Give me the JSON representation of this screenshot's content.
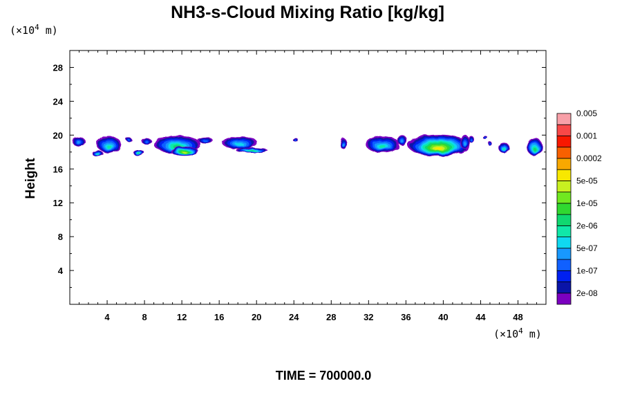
{
  "chart_data": {
    "type": "contour",
    "title": "NH3-s-Cloud Mixing Ratio [kg/kg]",
    "ylabel": "Height",
    "y_unit_prefix": "(×10",
    "y_unit_exp": "4",
    "y_unit_suffix": " m)",
    "x_unit_prefix": "(×10",
    "x_unit_exp": "4",
    "x_unit_suffix": " m)",
    "xlim": [
      0,
      51
    ],
    "ylim": [
      0,
      30
    ],
    "x_ticks": [
      4,
      8,
      12,
      16,
      20,
      24,
      28,
      32,
      36,
      40,
      44,
      48
    ],
    "y_ticks": [
      4,
      8,
      12,
      16,
      20,
      24,
      28
    ],
    "time_label": "TIME = 700000.0",
    "colorbar": {
      "levels": [
        "2e-08",
        "1e-07",
        "5e-07",
        "2e-06",
        "1e-05",
        "5e-05",
        "0.0002",
        "0.001",
        "0.005"
      ],
      "colors": [
        "#7b00c0",
        "#0a14a8",
        "#0020f0",
        "#1060ff",
        "#1898ff",
        "#10d8f0",
        "#10e8a8",
        "#10d870",
        "#30d830",
        "#70e820",
        "#c8f020",
        "#f8e800",
        "#f8a800",
        "#f86000",
        "#f81800",
        "#f84848",
        "#f8a0a8"
      ]
    },
    "cloud_cells": [
      {
        "x": 1.0,
        "y": 19.2,
        "rx": 0.7,
        "ry": 0.55,
        "level": 4
      },
      {
        "x": 4.2,
        "y": 18.9,
        "rx": 1.3,
        "ry": 1.0,
        "level": 6
      },
      {
        "x": 3.0,
        "y": 17.8,
        "rx": 0.6,
        "ry": 0.35,
        "level": 6
      },
      {
        "x": 6.3,
        "y": 19.5,
        "rx": 0.3,
        "ry": 0.25,
        "level": 3
      },
      {
        "x": 7.4,
        "y": 17.9,
        "rx": 0.6,
        "ry": 0.35,
        "level": 7
      },
      {
        "x": 8.2,
        "y": 19.3,
        "rx": 0.55,
        "ry": 0.35,
        "level": 3
      },
      {
        "x": 11.5,
        "y": 18.9,
        "rx": 2.5,
        "ry": 1.05,
        "level": 7
      },
      {
        "x": 12.3,
        "y": 18.1,
        "rx": 1.5,
        "ry": 0.55,
        "level": 10
      },
      {
        "x": 14.5,
        "y": 19.4,
        "rx": 0.8,
        "ry": 0.35,
        "level": 3
      },
      {
        "x": 18.2,
        "y": 19.1,
        "rx": 1.9,
        "ry": 0.75,
        "level": 5
      },
      {
        "x": 19.5,
        "y": 18.2,
        "rx": 1.7,
        "ry": 0.3,
        "level": 7
      },
      {
        "x": 24.2,
        "y": 19.4,
        "rx": 0.3,
        "ry": 0.2,
        "level": 3
      },
      {
        "x": 29.3,
        "y": 19.0,
        "rx": 0.35,
        "ry": 0.65,
        "level": 4
      },
      {
        "x": 33.5,
        "y": 18.9,
        "rx": 1.8,
        "ry": 1.0,
        "level": 6
      },
      {
        "x": 35.6,
        "y": 19.4,
        "rx": 0.5,
        "ry": 0.6,
        "level": 4
      },
      {
        "x": 39.5,
        "y": 18.8,
        "rx": 3.3,
        "ry": 1.3,
        "level": 11
      },
      {
        "x": 42.3,
        "y": 19.2,
        "rx": 0.55,
        "ry": 0.8,
        "level": 4
      },
      {
        "x": 43.0,
        "y": 19.5,
        "rx": 0.3,
        "ry": 0.4,
        "level": 3
      },
      {
        "x": 44.5,
        "y": 19.7,
        "rx": 0.25,
        "ry": 0.2,
        "level": 3
      },
      {
        "x": 45.0,
        "y": 19.0,
        "rx": 0.2,
        "ry": 0.25,
        "level": 3
      },
      {
        "x": 46.5,
        "y": 18.5,
        "rx": 0.6,
        "ry": 0.6,
        "level": 6
      },
      {
        "x": 49.8,
        "y": 18.6,
        "rx": 0.85,
        "ry": 1.05,
        "level": 7
      }
    ]
  }
}
